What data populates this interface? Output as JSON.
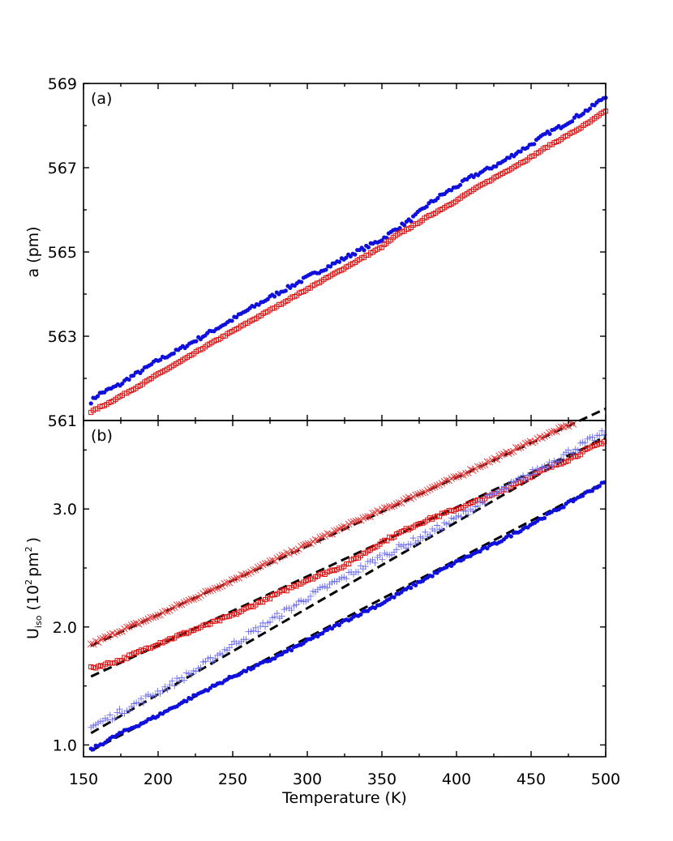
{
  "chart_data": [
    {
      "panel": "(a)",
      "type": "scatter",
      "ylabel": "a (pm)",
      "ylim": [
        561,
        569
      ],
      "yticks": [
        "561",
        "563",
        "565",
        "567",
        "569"
      ],
      "xlim": [
        150,
        500
      ],
      "series": [
        {
          "marker": "filled-circle",
          "color": "#1010dd",
          "points": [
            [
              155,
              561.45
            ],
            [
              160,
              561.62
            ],
            [
              165,
              561.7
            ],
            [
              170,
              561.78
            ],
            [
              175,
              561.86
            ],
            [
              180,
              562.0
            ],
            [
              185,
              562.1
            ],
            [
              190,
              562.2
            ],
            [
              200,
              562.43
            ],
            [
              210,
              562.6
            ],
            [
              220,
              562.8
            ],
            [
              230,
              563.0
            ],
            [
              240,
              563.2
            ],
            [
              250,
              563.4
            ],
            [
              260,
              563.62
            ],
            [
              270,
              563.82
            ],
            [
              280,
              564.02
            ],
            [
              290,
              564.2
            ],
            [
              300,
              564.4
            ],
            [
              310,
              564.58
            ],
            [
              320,
              564.76
            ],
            [
              330,
              564.95
            ],
            [
              340,
              565.12
            ],
            [
              350,
              565.3
            ],
            [
              360,
              565.56
            ],
            [
              370,
              565.78
            ],
            [
              380,
              566.1
            ],
            [
              390,
              566.35
            ],
            [
              400,
              566.55
            ],
            [
              410,
              566.78
            ],
            [
              420,
              566.95
            ],
            [
              430,
              567.12
            ],
            [
              440,
              567.35
            ],
            [
              450,
              567.55
            ],
            [
              460,
              567.8
            ],
            [
              470,
              567.98
            ],
            [
              480,
              568.2
            ],
            [
              490,
              568.42
            ],
            [
              500,
              568.7
            ]
          ]
        },
        {
          "marker": "open-square",
          "color": "#dd1010",
          "points": [
            [
              155,
              561.2
            ],
            [
              160,
              561.3
            ],
            [
              165,
              561.38
            ],
            [
              170,
              561.48
            ],
            [
              175,
              561.58
            ],
            [
              180,
              561.68
            ],
            [
              190,
              561.88
            ],
            [
              200,
              562.1
            ],
            [
              210,
              562.3
            ],
            [
              220,
              562.5
            ],
            [
              230,
              562.72
            ],
            [
              240,
              562.92
            ],
            [
              250,
              563.12
            ],
            [
              260,
              563.32
            ],
            [
              270,
              563.52
            ],
            [
              280,
              563.72
            ],
            [
              290,
              563.92
            ],
            [
              300,
              564.12
            ],
            [
              310,
              564.32
            ],
            [
              320,
              564.52
            ],
            [
              330,
              564.72
            ],
            [
              340,
              564.92
            ],
            [
              350,
              565.12
            ],
            [
              360,
              565.4
            ],
            [
              370,
              565.6
            ],
            [
              380,
              565.82
            ],
            [
              390,
              566.02
            ],
            [
              400,
              566.22
            ],
            [
              410,
              566.45
            ],
            [
              420,
              566.65
            ],
            [
              430,
              566.85
            ],
            [
              440,
              567.05
            ],
            [
              450,
              567.25
            ],
            [
              460,
              567.48
            ],
            [
              470,
              567.68
            ],
            [
              480,
              567.88
            ],
            [
              490,
              568.1
            ],
            [
              500,
              568.35
            ]
          ]
        }
      ]
    },
    {
      "panel": "(b)",
      "type": "scatter",
      "ylabel": {
        "main": "U",
        "sub": "iso",
        "open": "(10",
        "sup1": "2",
        "mid": "pm",
        "sup2": "2",
        "close": ")"
      },
      "xlabel": "Temperature (K)",
      "xlim": [
        150,
        500
      ],
      "xticks": [
        "150",
        "200",
        "250",
        "300",
        "350",
        "400",
        "450",
        "500"
      ],
      "ylim": [
        0.9,
        3.75
      ],
      "yticks": [
        "1.0",
        "2.0",
        "3.0"
      ],
      "series": [
        {
          "marker": "cross-x",
          "color": "#e33030",
          "fit": [
            1.84,
            3.85
          ],
          "values": [
            [
              155,
              1.85
            ],
            [
              175,
              1.97
            ],
            [
              200,
              2.1
            ],
            [
              225,
              2.25
            ],
            [
              250,
              2.4
            ],
            [
              275,
              2.55
            ],
            [
              300,
              2.7
            ],
            [
              325,
              2.85
            ],
            [
              350,
              2.99
            ],
            [
              375,
              3.13
            ],
            [
              400,
              3.27
            ],
            [
              425,
              3.42
            ],
            [
              450,
              3.57
            ],
            [
              475,
              3.71
            ],
            [
              500,
              3.85
            ]
          ]
        },
        {
          "marker": "open-square",
          "color": "#dd1010",
          "fit": [
            1.58,
            3.6
          ],
          "values": [
            [
              155,
              1.65
            ],
            [
              175,
              1.72
            ],
            [
              200,
              1.86
            ],
            [
              225,
              1.98
            ],
            [
              250,
              2.1
            ],
            [
              275,
              2.25
            ],
            [
              300,
              2.4
            ],
            [
              325,
              2.52
            ],
            [
              350,
              2.72
            ],
            [
              375,
              2.88
            ],
            [
              400,
              3.0
            ],
            [
              425,
              3.12
            ],
            [
              450,
              3.28
            ],
            [
              475,
              3.42
            ],
            [
              500,
              3.58
            ]
          ]
        },
        {
          "marker": "plus",
          "color": "#6a6aee",
          "fit": [
            1.1,
            3.62
          ],
          "values": [
            [
              155,
              1.15
            ],
            [
              175,
              1.28
            ],
            [
              200,
              1.45
            ],
            [
              225,
              1.63
            ],
            [
              250,
              1.85
            ],
            [
              275,
              2.05
            ],
            [
              300,
              2.25
            ],
            [
              325,
              2.42
            ],
            [
              350,
              2.6
            ],
            [
              375,
              2.75
            ],
            [
              400,
              2.92
            ],
            [
              425,
              3.12
            ],
            [
              450,
              3.3
            ],
            [
              475,
              3.48
            ],
            [
              500,
              3.65
            ]
          ]
        },
        {
          "marker": "filled-circle",
          "color": "#1010dd",
          "fit": [
            0.95,
            3.23
          ],
          "values": [
            [
              155,
              0.96
            ],
            [
              175,
              1.1
            ],
            [
              200,
              1.25
            ],
            [
              225,
              1.42
            ],
            [
              250,
              1.58
            ],
            [
              275,
              1.72
            ],
            [
              300,
              1.88
            ],
            [
              325,
              2.05
            ],
            [
              350,
              2.2
            ],
            [
              375,
              2.38
            ],
            [
              400,
              2.55
            ],
            [
              425,
              2.7
            ],
            [
              450,
              2.87
            ],
            [
              475,
              3.05
            ],
            [
              500,
              3.23
            ]
          ]
        }
      ]
    }
  ]
}
